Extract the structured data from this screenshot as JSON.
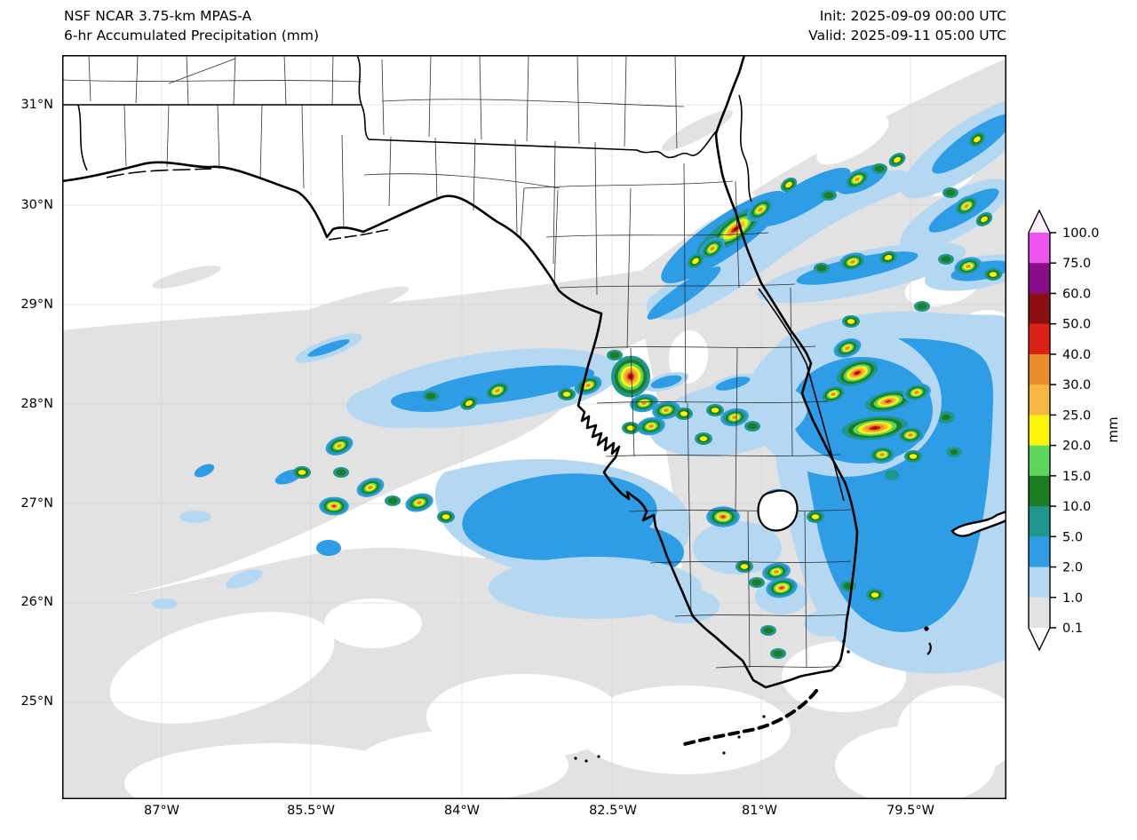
{
  "header": {
    "title_line1": "NSF NCAR 3.75-km MPAS-A",
    "title_line2": "6-hr Accumulated Precipitation (mm)",
    "init_label": "Init: 2025-09-09 00:00 UTC",
    "valid_label": "Valid: 2025-09-11 05:00 UTC"
  },
  "axes": {
    "y_ticks": [
      "31°N",
      "30°N",
      "29°N",
      "28°N",
      "27°N",
      "26°N",
      "25°N"
    ],
    "x_ticks": [
      "87°W",
      "85.5°W",
      "84°W",
      "82.5°W",
      "81°W",
      "79.5°W"
    ]
  },
  "colorbar": {
    "unit": "mm",
    "tick_labels_top_to_bottom": [
      "100.0",
      "75.0",
      "60.0",
      "50.0",
      "40.0",
      "30.0",
      "25.0",
      "20.0",
      "15.0",
      "10.0",
      "5.0",
      "2.0",
      "1.0",
      "0.1"
    ],
    "segment_colors_top_to_bottom": [
      "#ee55ee",
      "#860e88",
      "#8d0e11",
      "#da2217",
      "#e98d29",
      "#f4b842",
      "#fdf40a",
      "#5cd75c",
      "#1d7d22",
      "#1f968e",
      "#2e9de6",
      "#b5d8f2",
      "#e2e2e2"
    ],
    "over_arrow_color": "#fdeefd",
    "under_arrow_color": "#ffffff",
    "outline_color": "#000000"
  }
}
